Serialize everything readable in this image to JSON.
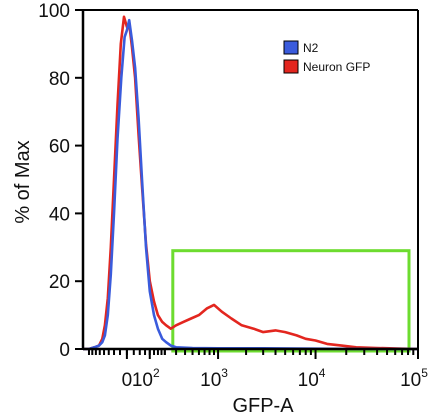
{
  "chart_data": {
    "type": "line",
    "xlabel": "GFP-A",
    "ylabel": "% of Max",
    "x_scale": "biexponential",
    "xlim": [
      -250,
      100000
    ],
    "ylim": [
      0,
      100
    ],
    "y_ticks": [
      0,
      20,
      40,
      60,
      80,
      100
    ],
    "x_ticks": [
      {
        "value": 0,
        "base": "0",
        "exp": ""
      },
      {
        "value": 100,
        "base": "10",
        "exp": "2"
      },
      {
        "value": 1000,
        "base": "10",
        "exp": "3"
      },
      {
        "value": 10000,
        "base": "10",
        "exp": "4"
      },
      {
        "value": 100000,
        "base": "10",
        "exp": "5"
      }
    ],
    "grid": false,
    "legend_position": "top-right",
    "series": [
      {
        "name": "N2",
        "color": "#3a5bdc",
        "x": [
          -250,
          -200,
          -160,
          -130,
          -110,
          -95,
          -80,
          -65,
          -50,
          -35,
          -20,
          -8,
          0,
          8,
          18,
          30,
          45,
          60,
          80,
          100,
          125,
          150,
          180,
          210,
          250,
          300,
          500,
          1000,
          3000,
          10000,
          30000,
          100000
        ],
        "y": [
          0,
          0,
          0.5,
          1,
          2,
          4,
          10,
          22,
          40,
          62,
          80,
          92,
          94,
          97,
          91,
          83,
          68,
          50,
          30,
          17,
          10,
          6,
          3,
          2,
          1,
          0.5,
          0.3,
          0.2,
          0.2,
          0.1,
          0,
          0
        ]
      },
      {
        "name": "Neuron GFP",
        "color": "#e3261f",
        "x": [
          -250,
          -200,
          -160,
          -130,
          -110,
          -95,
          -80,
          -65,
          -50,
          -35,
          -22,
          -10,
          0,
          8,
          18,
          30,
          45,
          60,
          80,
          100,
          125,
          150,
          180,
          210,
          250,
          300,
          380,
          480,
          600,
          750,
          900,
          1100,
          1400,
          1800,
          2400,
          3000,
          4000,
          5000,
          6500,
          8000,
          10000,
          13000,
          18000,
          25000,
          40000,
          70000,
          100000
        ],
        "y": [
          0,
          0,
          0.5,
          1,
          3,
          7,
          15,
          30,
          50,
          72,
          90,
          98,
          95,
          96,
          89,
          80,
          63,
          48,
          31,
          20,
          14,
          10,
          8,
          7,
          6,
          7,
          8,
          9,
          10,
          12,
          13,
          11,
          9,
          7,
          6,
          5,
          5.5,
          5,
          4,
          3,
          2.5,
          1.5,
          1,
          0.5,
          0.3,
          0.1,
          0
        ]
      }
    ],
    "gate": {
      "x_range": [
        250,
        100000
      ],
      "y_range": [
        0,
        29
      ],
      "color": "#6ddc2f"
    }
  }
}
